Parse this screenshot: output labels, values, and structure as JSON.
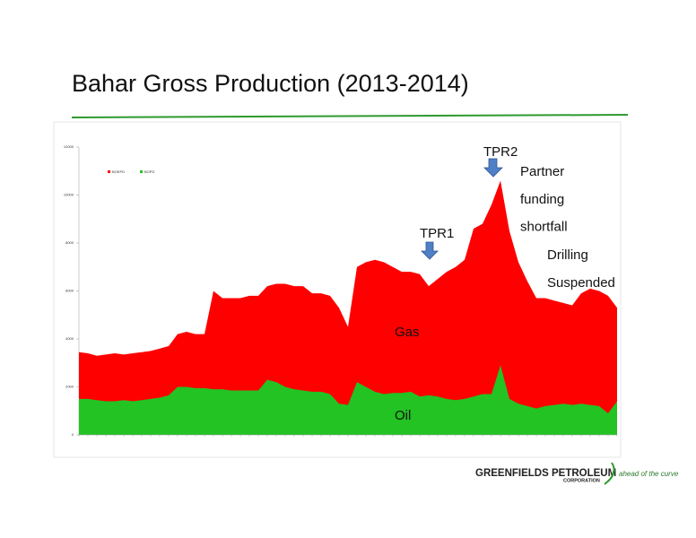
{
  "chart_data": {
    "type": "area",
    "title": "Bahar Gross Production (2013-2014)",
    "categories": [
      null,
      null,
      null,
      null,
      null,
      null,
      null,
      null,
      null,
      null,
      null,
      null,
      null,
      null,
      null,
      null,
      null,
      null,
      null,
      null,
      null,
      null,
      null,
      null,
      null,
      null,
      null,
      null,
      null,
      null,
      null,
      null,
      null,
      null,
      null,
      null,
      null,
      null,
      null,
      null,
      null,
      null,
      null,
      null,
      null,
      null,
      null,
      null,
      null,
      null,
      null,
      null,
      null,
      null,
      null,
      null,
      null,
      null,
      null,
      null,
      null
    ],
    "series": [
      {
        "name": "BOEPD",
        "color": "#ff0000",
        "values": [
          3450,
          3400,
          3300,
          3350,
          3400,
          3350,
          3400,
          3450,
          3500,
          3600,
          3700,
          4200,
          4300,
          4200,
          4200,
          6000,
          5700,
          5700,
          5700,
          5800,
          5800,
          6200,
          6300,
          6300,
          6200,
          6200,
          5900,
          5900,
          5800,
          5300,
          4500,
          7000,
          7200,
          7300,
          7200,
          7000,
          6800,
          6800,
          6700,
          6200,
          6500,
          6800,
          7000,
          7300,
          8600,
          8800,
          9600,
          10600,
          8500,
          7200,
          6400,
          5700,
          5700,
          5600,
          5500,
          5400,
          5900,
          6100,
          6000,
          5800,
          5300
        ]
      },
      {
        "name": "BOPD",
        "color": "#22c322",
        "values": [
          1500,
          1500,
          1450,
          1400,
          1400,
          1450,
          1400,
          1450,
          1500,
          1550,
          1650,
          2000,
          2000,
          1950,
          1950,
          1900,
          1900,
          1850,
          1850,
          1850,
          1850,
          2300,
          2200,
          2000,
          1900,
          1850,
          1800,
          1800,
          1700,
          1300,
          1250,
          2200,
          2000,
          1800,
          1700,
          1750,
          1750,
          1800,
          1600,
          1650,
          1600,
          1500,
          1450,
          1500,
          1600,
          1700,
          1700,
          2900,
          1500,
          1300,
          1200,
          1100,
          1200,
          1250,
          1300,
          1250,
          1300,
          1250,
          1200,
          900,
          1400
        ]
      }
    ],
    "ylim": [
      0,
      12000
    ],
    "yticks": [
      0,
      2000,
      4000,
      6000,
      8000,
      10000,
      12000
    ],
    "legend": "top-left",
    "annotations": [
      {
        "lines": [
          "TPR1"
        ]
      },
      {
        "lines": [
          "TPR2"
        ]
      },
      {
        "lines": [
          "Partner",
          "funding",
          "shortfall"
        ]
      },
      {
        "lines": [
          "Drilling",
          "Suspended"
        ]
      },
      {
        "lines": [
          "Gas"
        ]
      },
      {
        "lines": [
          "Oil"
        ]
      }
    ]
  },
  "footer": {
    "company": "GREENFIELDS PETROLEUM",
    "subtitle": "CORPORATION",
    "tagline": "ahead of the curve"
  }
}
